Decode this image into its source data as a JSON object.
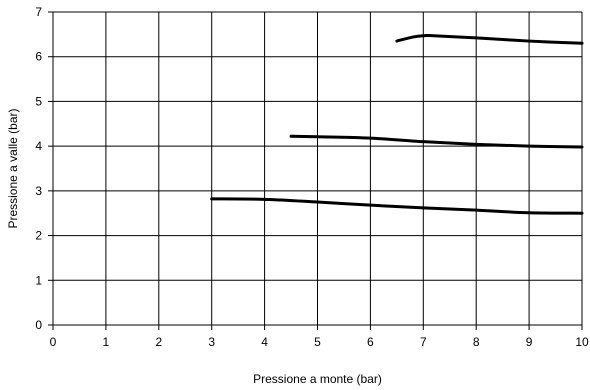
{
  "chart_data": {
    "type": "line",
    "title": "",
    "xlabel": "Pressione a monte (bar)",
    "ylabel": "Pressione a valle (bar)",
    "xlim": [
      0,
      10
    ],
    "ylim": [
      0,
      7
    ],
    "xticks": [
      0,
      1,
      2,
      3,
      4,
      5,
      6,
      7,
      8,
      9,
      10
    ],
    "yticks": [
      0,
      1,
      2,
      3,
      4,
      5,
      6,
      7
    ],
    "grid": true,
    "legend": "none",
    "line_color": "#000000",
    "series": [
      {
        "x": [
          6.5,
          6.8,
          7.0,
          7.2,
          8.0,
          9.0,
          10.0
        ],
        "y": [
          6.35,
          6.44,
          6.47,
          6.47,
          6.42,
          6.35,
          6.3
        ]
      },
      {
        "x": [
          4.5,
          5.0,
          6.0,
          7.0,
          8.0,
          9.0,
          10.0
        ],
        "y": [
          4.22,
          4.21,
          4.18,
          4.1,
          4.04,
          4.0,
          3.98
        ]
      },
      {
        "x": [
          3.0,
          4.0,
          5.0,
          6.0,
          7.0,
          8.0,
          9.0,
          10.0
        ],
        "y": [
          2.82,
          2.81,
          2.75,
          2.68,
          2.62,
          2.57,
          2.51,
          2.5
        ]
      }
    ]
  }
}
